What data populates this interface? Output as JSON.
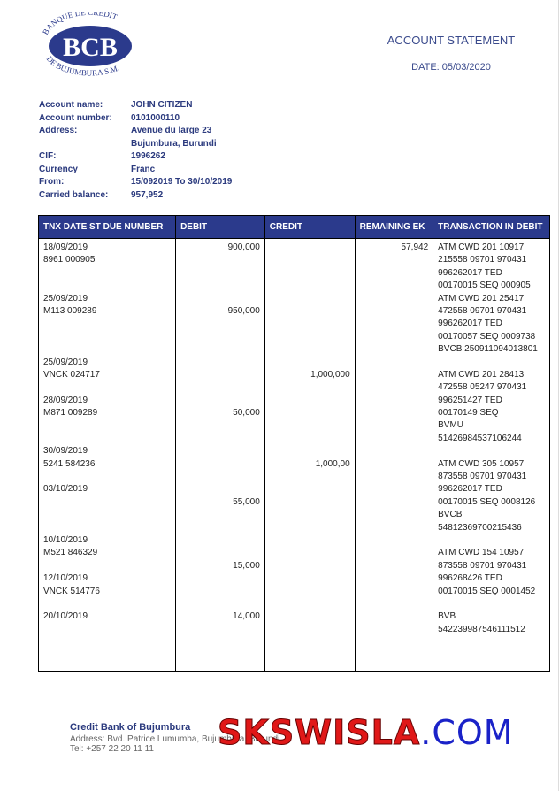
{
  "logo": {
    "initials": "BCB",
    "top_arc": "BANQUE DE CREDIT",
    "bottom_arc": "DE BUJUMBURA S.M.",
    "color": "#2b3a8c"
  },
  "header": {
    "title": "ACCOUNT STATEMENT",
    "date": "DATE: 05/03/2020"
  },
  "account": [
    {
      "label": "Account name:",
      "value": "JOHN CITIZEN"
    },
    {
      "label": "Account number:",
      "value": "0101000110"
    },
    {
      "label": "Address:",
      "value": "Avenue du large 23"
    },
    {
      "label": "",
      "value": "Bujumbura, Burundi"
    },
    {
      "label": "CIF:",
      "value": "1996262"
    },
    {
      "label": "Currency",
      "value": "Franc"
    },
    {
      "label": "From:",
      "value": "15/092019 To 30/10/2019"
    },
    {
      "label": "Carried balance:",
      "value": "957,952"
    }
  ],
  "table": {
    "headers": [
      "TNX DATE ST DUE NUMBER",
      "DEBIT",
      "CREDIT",
      "REMAINING EK",
      "TRANSACTION IN DEBIT"
    ],
    "columns": [
      [
        "18/09/2019",
        "8961 000905",
        "",
        "",
        "25/09/2019",
        "M113 009289",
        "",
        "",
        "",
        "25/09/2019",
        "VNCK 024717",
        "",
        "28/09/2019",
        "M871 009289",
        "",
        "",
        "30/09/2019",
        "5241 584236",
        "",
        "03/10/2019",
        "",
        "",
        "",
        "10/10/2019",
        "M521 846329",
        "",
        "12/10/2019",
        "VNCK 514776",
        "",
        "20/10/2019"
      ],
      [
        "900,000",
        "",
        "",
        "",
        "",
        "950,000",
        "",
        "",
        "",
        "",
        "",
        "",
        "",
        "50,000",
        "",
        "",
        "",
        "",
        "",
        "",
        "55,000",
        "",
        "",
        "",
        "",
        "15,000",
        "",
        "",
        "",
        "14,000"
      ],
      [
        "",
        "",
        "",
        "",
        "",
        "",
        "",
        "",
        "",
        "",
        "1,000,000",
        "",
        "",
        "",
        "",
        "",
        "",
        "1,000,00"
      ],
      [
        "57,942"
      ],
      [
        "ATM CWD 201 10917",
        "215558 09701 970431",
        "996262017 TED",
        "00170015 SEQ 000905",
        "ATM CWD 201 25417",
        "472558 09701 970431",
        "996262017 TED",
        "00170057 SEQ 0009738",
        "BVCB 250911094013801",
        "",
        "ATM CWD 201 28413",
        "472558 05247 970431",
        "996251427 TED",
        "00170149 SEQ",
        "BVMU",
        "51426984537106244",
        "",
        "ATM CWD 305 10957",
        "873558 09701 970431",
        "996262017 TED",
        "00170015 SEQ 0008126",
        "BVCB",
        "54812369700215436",
        "",
        "ATM CWD 154 10957",
        "873558 09701 970431",
        "996268426 TED",
        "00170015 SEQ 0001452",
        "",
        "BVB",
        "542239987546111512"
      ]
    ]
  },
  "footer": {
    "bank": "Credit Bank of Bujumbura",
    "address": "Address: Bvd. Patrice Lumumba, Bujumbura, Burundi",
    "tel": "Tel: +257 22 20 11 11"
  },
  "watermark": {
    "part1": "SKSWISLA",
    "part2": ".COM"
  }
}
